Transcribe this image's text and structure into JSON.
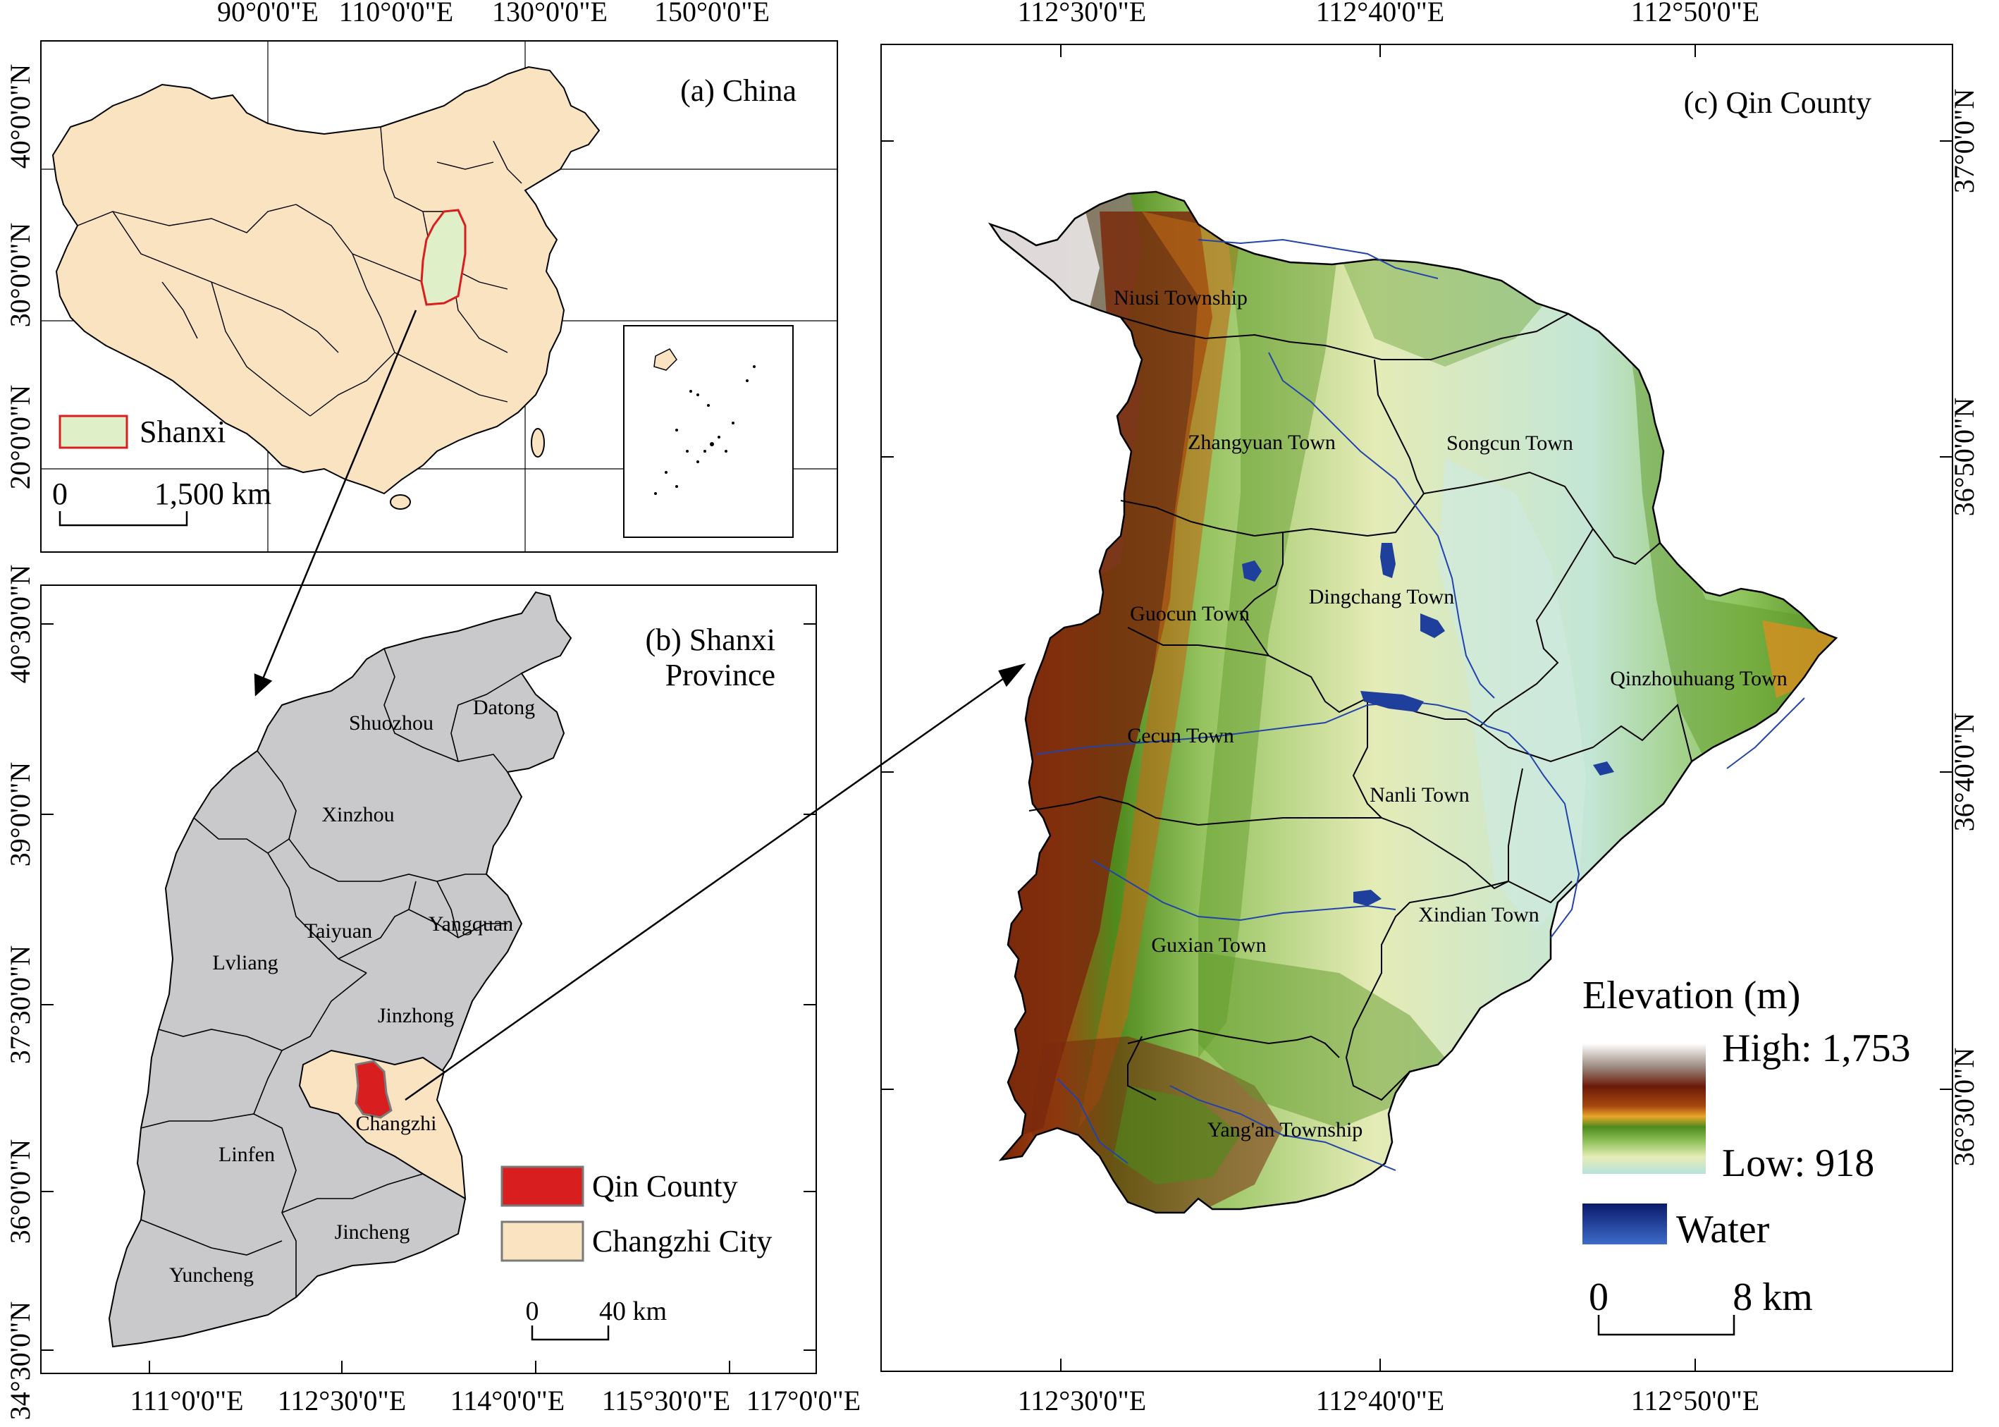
{
  "panel_a": {
    "title": "(a) China",
    "top_ticks": [
      "90°0'0\"E",
      "110°0'0\"E",
      "130°0'0\"E",
      "150°0'0\"E"
    ],
    "left_ticks": [
      "40°0'0\"N",
      "30°0'0\"N",
      "20°0'0\"N"
    ],
    "legend_label": "Shanxi",
    "scale_start": "0",
    "scale_end": "1,500 km"
  },
  "panel_b": {
    "title_line1": "(b) Shanxi",
    "title_line2": "Province",
    "left_ticks": [
      "40°30'0\"N",
      "39°0'0\"N",
      "37°30'0\"N",
      "36°0'0\"N",
      "34°30'0\"N"
    ],
    "bottom_ticks": [
      "111°0'0\"E",
      "112°30'0\"E",
      "114°0'0\"E",
      "115°30'0\"E",
      "117°0'0\"E"
    ],
    "cities": [
      "Datong",
      "Shuozhou",
      "Xinzhou",
      "Taiyuan",
      "Yangquan",
      "Lvliang",
      "Jinzhong",
      "Changzhi",
      "Linfen",
      "Jincheng",
      "Yuncheng"
    ],
    "legend": {
      "qin": "Qin County",
      "changzhi": "Changzhi City"
    },
    "scale_start": "0",
    "scale_end": "40 km"
  },
  "panel_c": {
    "title": "(c) Qin County",
    "top_ticks": [
      "112°30'0\"E",
      "112°40'0\"E",
      "112°50'0\"E"
    ],
    "bottom_ticks": [
      "112°30'0\"E",
      "112°40'0\"E",
      "112°50'0\"E"
    ],
    "right_ticks": [
      "37°0'0\"N",
      "36°50'0\"N",
      "36°40'0\"N",
      "36°30'0\"N"
    ],
    "towns": [
      "Niusi Township",
      "Zhangyuan Town",
      "Songcun Town",
      "Dingchang Town",
      "Guocun Town",
      "Qinzhouhuang Town",
      "Cecun Town",
      "Nanli Town",
      "Xindian Town",
      "Guxian Town",
      "Yang'an Township"
    ],
    "legend_title": "Elevation (m)",
    "high": "High: 1,753",
    "low": "Low: 918",
    "water": "Water",
    "scale_start": "0",
    "scale_end": "8 km"
  },
  "colors": {
    "china_fill": "#f9e3c1",
    "shanxi_fill": "#dff0c8",
    "shanxi_outline": "#d81e1e",
    "province_fill": "#c9c9cb",
    "changzhi_fill": "#f9e3c1",
    "qin_fill": "#d81e1e",
    "water": "#1f3f9c"
  }
}
